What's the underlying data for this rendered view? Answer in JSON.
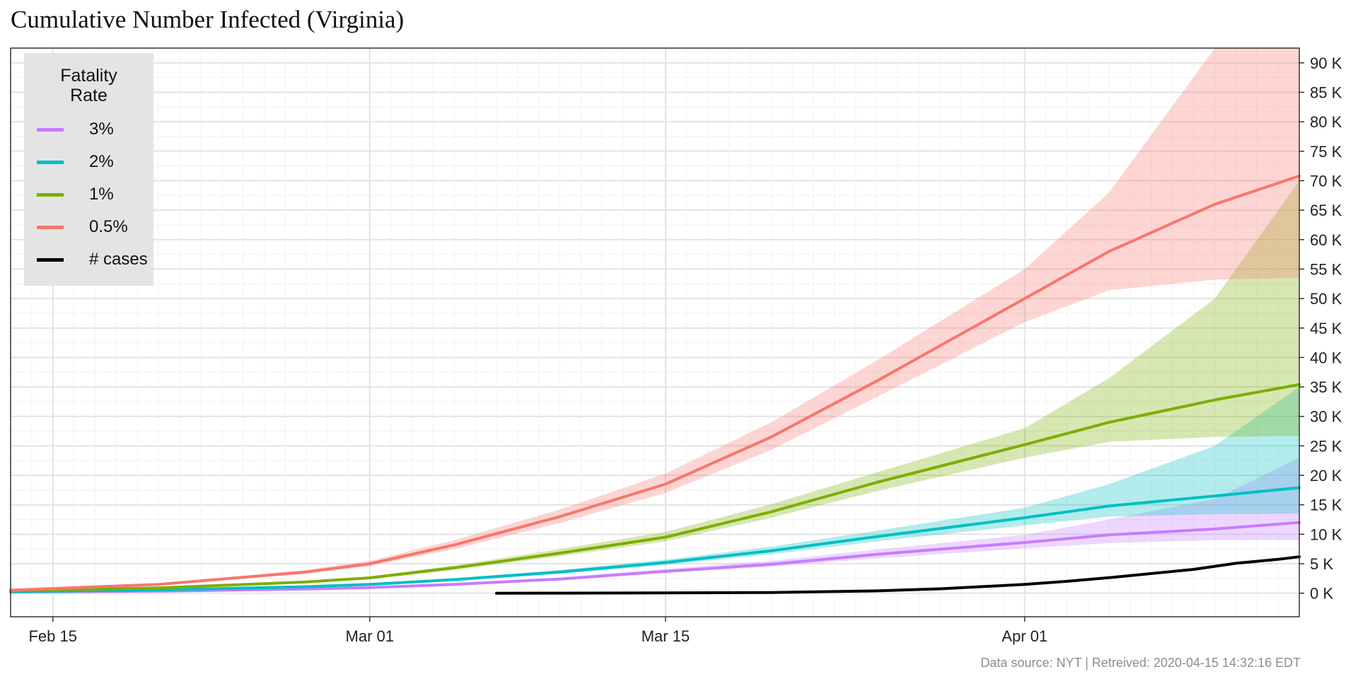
{
  "chart_data": {
    "type": "line",
    "title": "Cumulative Number Infected (Virginia)",
    "caption": "Data source: NYT  |  Retreived: 2020-04-15 14:32:16 EDT",
    "legend": {
      "title": "Fatality\nRate",
      "position": "top-left"
    },
    "x_axis": {
      "type": "date",
      "range": [
        "2020-02-13",
        "2020-04-14"
      ],
      "ticks": [
        {
          "date": "2020-02-15",
          "label": "Feb 15"
        },
        {
          "date": "2020-03-01",
          "label": "Mar 01"
        },
        {
          "date": "2020-03-15",
          "label": "Mar 15"
        },
        {
          "date": "2020-04-01",
          "label": "Apr 01"
        }
      ]
    },
    "y_axis": {
      "position": "right",
      "range": [
        -4000,
        92500
      ],
      "ticks": [
        0,
        5000,
        10000,
        15000,
        20000,
        25000,
        30000,
        35000,
        40000,
        45000,
        50000,
        55000,
        60000,
        65000,
        70000,
        75000,
        80000,
        85000,
        90000
      ],
      "tick_labels": [
        "0 K",
        "5 K",
        "10 K",
        "15 K",
        "20 K",
        "25 K",
        "30 K",
        "35 K",
        "40 K",
        "45 K",
        "50 K",
        "55 K",
        "60 K",
        "65 K",
        "70 K",
        "75 K",
        "80 K",
        "85 K",
        "90 K"
      ],
      "grid": true
    },
    "series": [
      {
        "name": "3%",
        "color": "#c77cff",
        "x": [
          "2020-02-13",
          "2020-02-20",
          "2020-02-27",
          "2020-03-01",
          "2020-03-05",
          "2020-03-10",
          "2020-03-15",
          "2020-03-20",
          "2020-03-25",
          "2020-04-01",
          "2020-04-05",
          "2020-04-10",
          "2020-04-14"
        ],
        "values": [
          200,
          350,
          700,
          950,
          1500,
          2400,
          3700,
          4900,
          6600,
          8600,
          9900,
          10900,
          12000
        ],
        "lower": [
          200,
          330,
          650,
          880,
          1400,
          2250,
          3400,
          4500,
          5900,
          7600,
          8500,
          9000,
          9000
        ],
        "upper": [
          250,
          380,
          770,
          1050,
          1650,
          2700,
          4100,
          5500,
          7400,
          9900,
          12500,
          16000,
          23000
        ]
      },
      {
        "name": "2%",
        "color": "#00bfc4",
        "x": [
          "2020-02-13",
          "2020-02-20",
          "2020-02-27",
          "2020-03-01",
          "2020-03-05",
          "2020-03-10",
          "2020-03-15",
          "2020-03-20",
          "2020-03-25",
          "2020-04-01",
          "2020-04-05",
          "2020-04-10",
          "2020-04-14"
        ],
        "values": [
          250,
          550,
          1100,
          1500,
          2300,
          3600,
          5200,
          7200,
          9600,
          12800,
          14800,
          16500,
          17900
        ],
        "lower": [
          230,
          500,
          1000,
          1400,
          2100,
          3300,
          4800,
          6600,
          8800,
          11500,
          13000,
          13400,
          13500
        ],
        "upper": [
          270,
          600,
          1200,
          1650,
          2500,
          3950,
          5700,
          7900,
          10600,
          14500,
          18500,
          25000,
          35000
        ]
      },
      {
        "name": "1%",
        "color": "#7cae00",
        "x": [
          "2020-02-13",
          "2020-02-20",
          "2020-02-27",
          "2020-03-01",
          "2020-03-05",
          "2020-03-10",
          "2020-03-15",
          "2020-03-20",
          "2020-03-25",
          "2020-04-01",
          "2020-04-05",
          "2020-04-10",
          "2020-04-14"
        ],
        "values": [
          400,
          900,
          1900,
          2600,
          4300,
          6800,
          9500,
          13800,
          18800,
          25200,
          29000,
          32800,
          35400
        ],
        "lower": [
          370,
          830,
          1750,
          2400,
          3950,
          6250,
          8800,
          12800,
          17300,
          23000,
          25700,
          26500,
          26700
        ],
        "upper": [
          440,
          980,
          2100,
          2850,
          4700,
          7500,
          10400,
          15100,
          20500,
          28000,
          36500,
          50000,
          70000
        ]
      },
      {
        "name": "0.5%",
        "color": "#f8766d",
        "x": [
          "2020-02-13",
          "2020-02-20",
          "2020-02-27",
          "2020-03-01",
          "2020-03-05",
          "2020-03-10",
          "2020-03-15",
          "2020-03-20",
          "2020-03-25",
          "2020-04-01",
          "2020-04-05",
          "2020-04-10",
          "2020-04-14"
        ],
        "values": [
          500,
          1500,
          3600,
          5000,
          8200,
          13000,
          18500,
          26500,
          36000,
          50000,
          58000,
          66000,
          70800
        ],
        "lower": [
          450,
          1350,
          3300,
          4600,
          7500,
          11900,
          17000,
          24300,
          33300,
          46000,
          51400,
          53200,
          53500
        ],
        "upper": [
          560,
          1650,
          3950,
          5500,
          9000,
          14200,
          20300,
          29000,
          39500,
          55000,
          68000,
          92500,
          92500
        ]
      },
      {
        "name": "# cases",
        "color": "#000000",
        "x": [
          "2020-03-07",
          "2020-03-10",
          "2020-03-15",
          "2020-03-20",
          "2020-03-25",
          "2020-03-28",
          "2020-04-01",
          "2020-04-03",
          "2020-04-05",
          "2020-04-07",
          "2020-04-09",
          "2020-04-11",
          "2020-04-13",
          "2020-04-14"
        ],
        "values": [
          2,
          9,
          45,
          114,
          391,
          739,
          1484,
          2012,
          2640,
          3333,
          4042,
          5077,
          5747,
          6182
        ]
      }
    ]
  }
}
